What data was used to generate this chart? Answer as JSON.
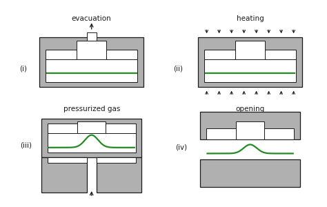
{
  "background": "#ffffff",
  "gray": "#b0b0b0",
  "white": "#ffffff",
  "black": "#1a1a1a",
  "green": "#228b22",
  "fs_title": 7.5,
  "fs_label": 7.5,
  "titles": [
    "evacuation",
    "heating",
    "pressurized gas",
    "opening"
  ],
  "labels": [
    "(i)",
    "(ii)",
    "(iii)",
    "(iv)"
  ]
}
